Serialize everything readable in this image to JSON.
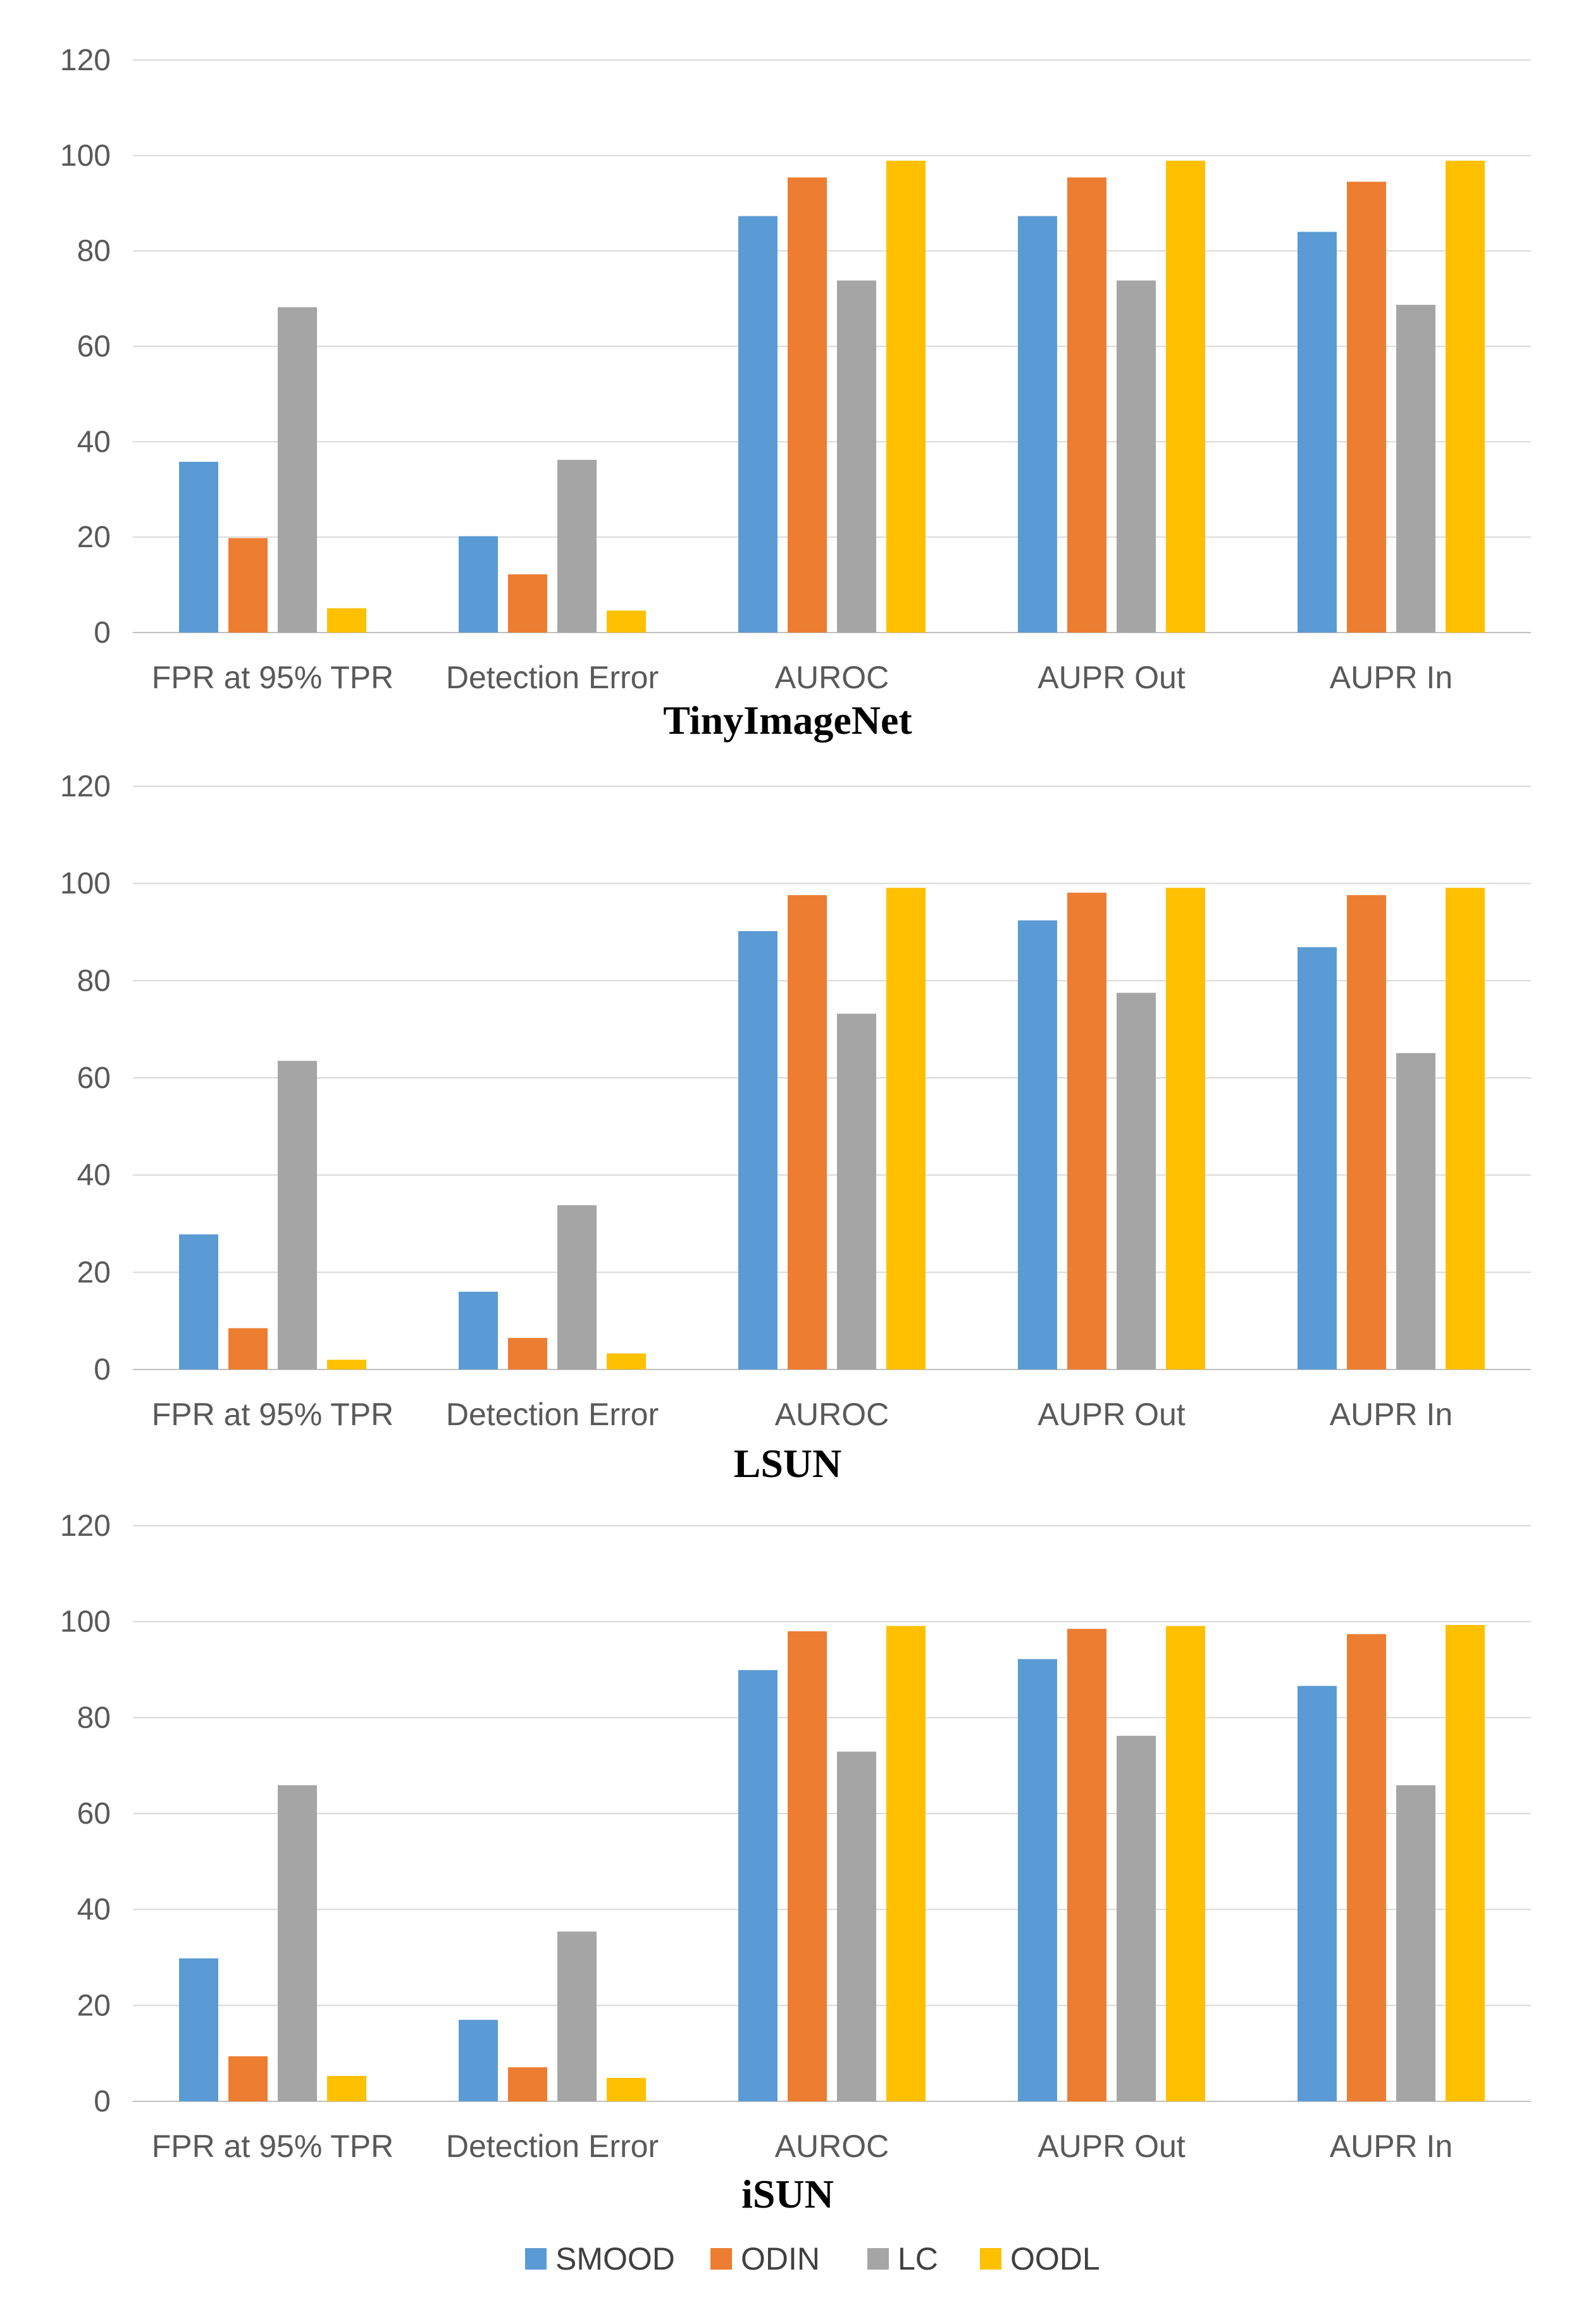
{
  "chart_data": [
    {
      "type": "bar",
      "title": "TinyImageNet",
      "categories": [
        "FPR at 95% TPR",
        "Detection Error",
        "AUROC",
        "AUPR Out",
        "AUPR In"
      ],
      "ylim": [
        0,
        120
      ],
      "yticks": [
        0,
        20,
        40,
        60,
        80,
        100,
        120
      ],
      "grid": true,
      "series": [
        {
          "name": "SMOOD",
          "values": [
            35.8,
            20.2,
            87.3,
            87.3,
            84.0
          ]
        },
        {
          "name": "ODIN",
          "values": [
            19.8,
            12.2,
            95.4,
            95.4,
            94.5
          ]
        },
        {
          "name": "LC",
          "values": [
            68.2,
            36.2,
            73.8,
            73.8,
            68.7
          ]
        },
        {
          "name": "OODL",
          "values": [
            5.1,
            4.6,
            98.9,
            98.9,
            98.9
          ]
        }
      ]
    },
    {
      "type": "bar",
      "title": "LSUN",
      "categories": [
        "FPR at 95% TPR",
        "Detection Error",
        "AUROC",
        "AUPR Out",
        "AUPR In"
      ],
      "ylim": [
        0,
        120
      ],
      "yticks": [
        0,
        20,
        40,
        60,
        80,
        100,
        120
      ],
      "grid": true,
      "series": [
        {
          "name": "SMOOD",
          "values": [
            27.8,
            16.0,
            90.2,
            92.4,
            86.9
          ]
        },
        {
          "name": "ODIN",
          "values": [
            8.5,
            6.5,
            97.6,
            98.1,
            97.6
          ]
        },
        {
          "name": "LC",
          "values": [
            63.5,
            33.8,
            73.2,
            77.5,
            65.1
          ]
        },
        {
          "name": "OODL",
          "values": [
            2.0,
            3.3,
            99.1,
            99.1,
            99.1
          ]
        }
      ]
    },
    {
      "type": "bar",
      "title": "iSUN",
      "categories": [
        "FPR at 95% TPR",
        "Detection Error",
        "AUROC",
        "AUPR Out",
        "AUPR In"
      ],
      "ylim": [
        0,
        120
      ],
      "yticks": [
        0,
        20,
        40,
        60,
        80,
        100,
        120
      ],
      "grid": true,
      "series": [
        {
          "name": "SMOOD",
          "values": [
            29.8,
            17.0,
            89.9,
            92.2,
            86.6
          ]
        },
        {
          "name": "ODIN",
          "values": [
            9.4,
            7.1,
            98.0,
            98.5,
            97.4
          ]
        },
        {
          "name": "LC",
          "values": [
            65.9,
            35.4,
            72.9,
            76.2,
            65.9
          ]
        },
        {
          "name": "OODL",
          "values": [
            5.3,
            4.9,
            99.1,
            99.1,
            99.3
          ]
        }
      ]
    }
  ],
  "legend": {
    "position": "bottom-center",
    "items": [
      {
        "name": "SMOOD",
        "color": "#5b9bd5"
      },
      {
        "name": "ODIN",
        "color": "#ed7d31"
      },
      {
        "name": "LC",
        "color": "#a5a5a5"
      },
      {
        "name": "OODL",
        "color": "#ffc000"
      }
    ]
  }
}
